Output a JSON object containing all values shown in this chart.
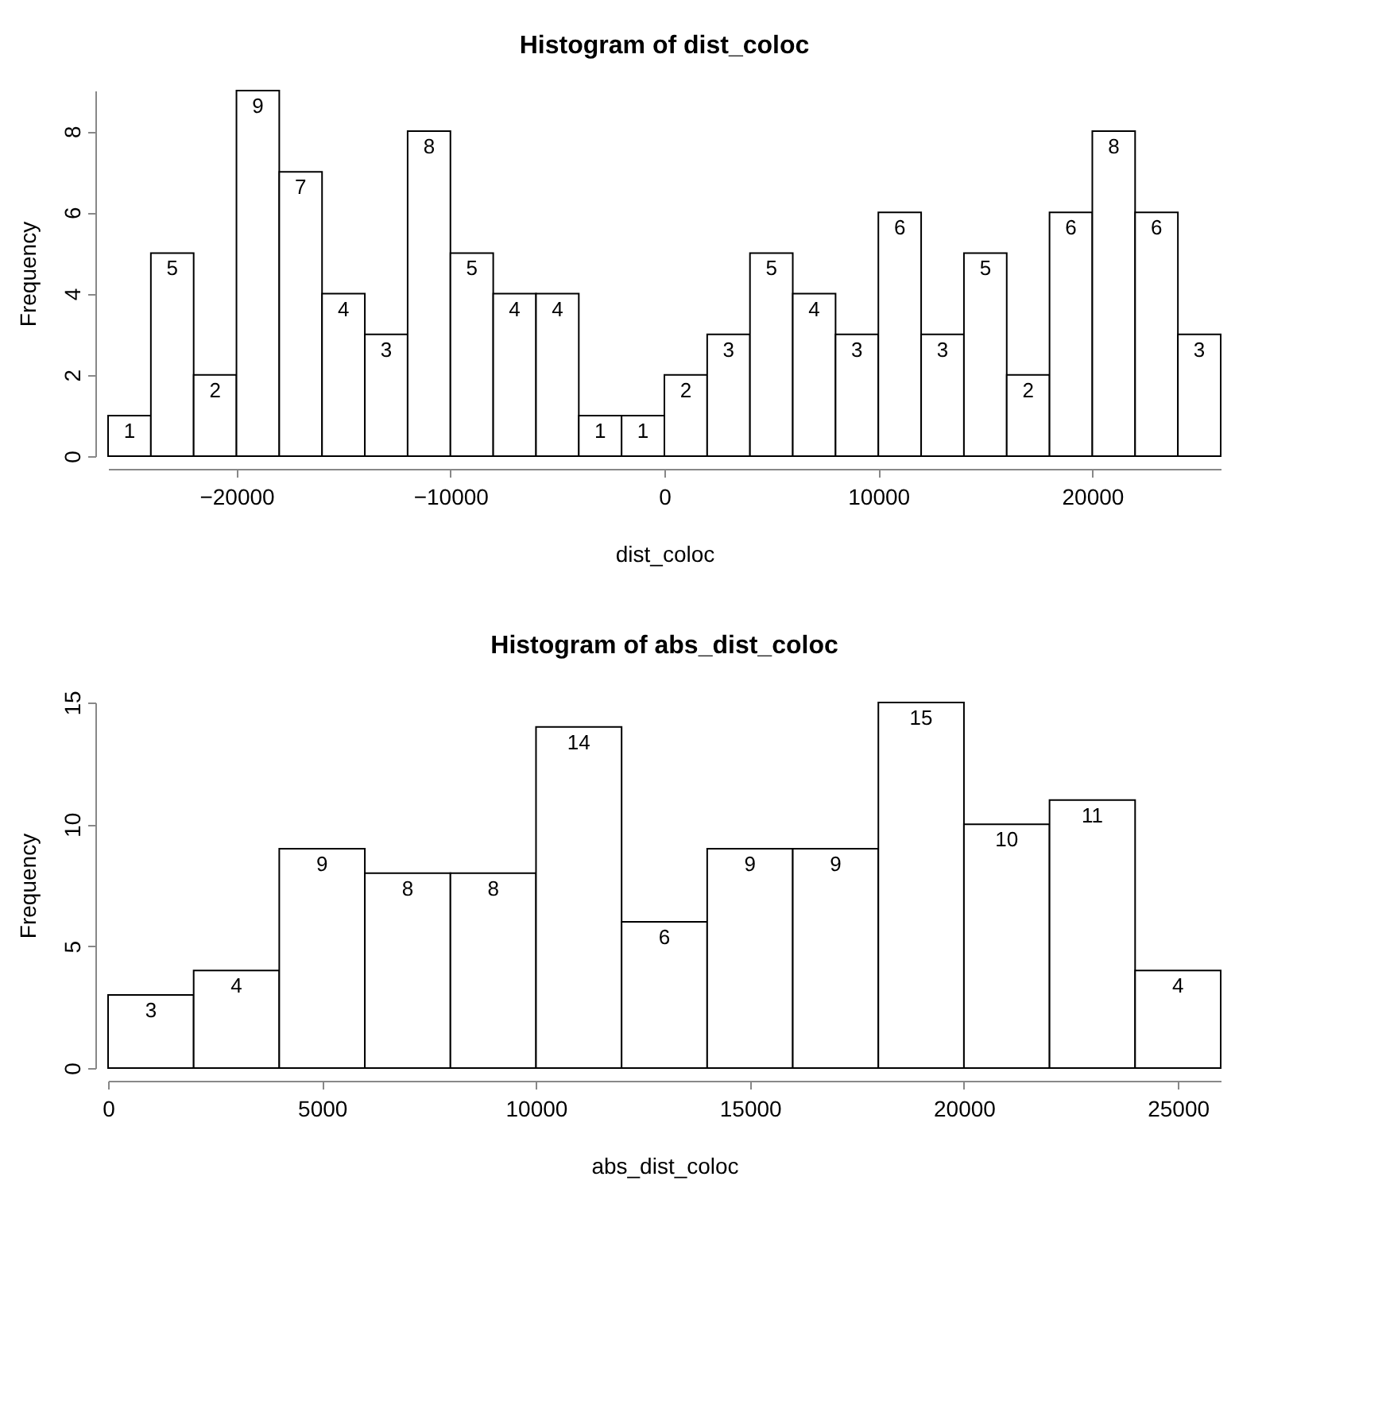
{
  "chart_data": [
    {
      "type": "histogram",
      "title": "Histogram of dist_coloc",
      "xlabel": "dist_coloc",
      "ylabel": "Frequency",
      "color": "#ffffff",
      "bins": [
        -26000,
        -24000,
        -22000,
        -20000,
        -18000,
        -16000,
        -14000,
        -12000,
        -10000,
        -8000,
        -6000,
        -4000,
        -2000,
        0,
        2000,
        4000,
        6000,
        8000,
        10000,
        12000,
        14000,
        16000,
        18000,
        20000,
        22000,
        24000,
        26000
      ],
      "values": [
        1,
        5,
        2,
        9,
        7,
        4,
        3,
        8,
        5,
        4,
        4,
        1,
        1,
        2,
        3,
        5,
        4,
        3,
        6,
        3,
        5,
        2,
        6,
        8,
        6,
        3
      ],
      "xlim": [
        -26000,
        26000
      ],
      "xticks": [
        -20000,
        -10000,
        0,
        10000,
        20000
      ],
      "ylim": [
        0,
        9
      ],
      "yticks": [
        0,
        2,
        4,
        6,
        8
      ],
      "data_labels": true,
      "grid": false
    },
    {
      "type": "histogram",
      "title": "Histogram of abs_dist_coloc",
      "xlabel": "abs_dist_coloc",
      "ylabel": "Frequency",
      "color": "#ffffff",
      "bins": [
        0,
        2000,
        4000,
        6000,
        8000,
        10000,
        12000,
        14000,
        16000,
        18000,
        20000,
        22000,
        24000,
        26000
      ],
      "values": [
        3,
        4,
        9,
        8,
        8,
        14,
        6,
        9,
        9,
        15,
        10,
        11,
        4
      ],
      "xlim": [
        0,
        26000
      ],
      "xticks": [
        0,
        5000,
        10000,
        15000,
        20000,
        25000
      ],
      "ylim": [
        0,
        15
      ],
      "yticks": [
        0,
        5,
        10,
        15
      ],
      "data_labels": true,
      "grid": false
    }
  ]
}
